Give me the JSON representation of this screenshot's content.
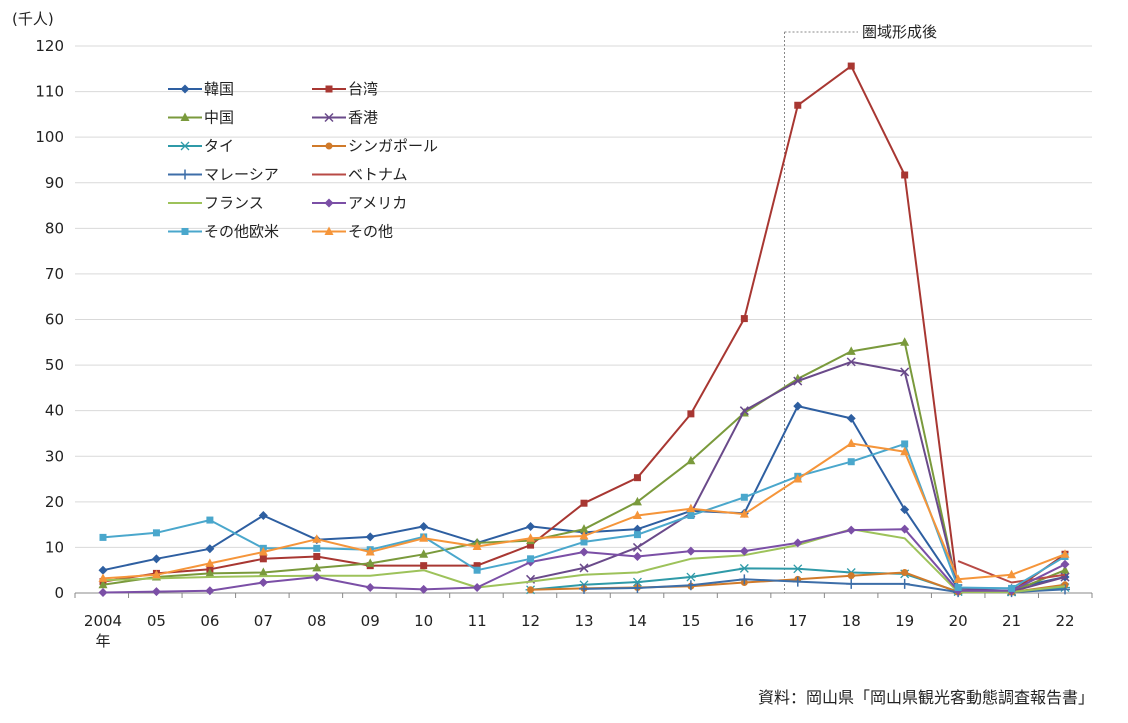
{
  "unit_label": "(千人)",
  "source": "資料：岡山県「岡山県観光客動態調査報告書」",
  "chart_data": {
    "type": "line",
    "x": [
      "2004",
      "05",
      "06",
      "07",
      "08",
      "09",
      "10",
      "11",
      "12",
      "13",
      "14",
      "15",
      "16",
      "17",
      "18",
      "19",
      "20",
      "21",
      "22"
    ],
    "x_first_sublabel": "年",
    "ylim": [
      0,
      120
    ],
    "yticks": [
      0,
      10,
      20,
      30,
      40,
      50,
      60,
      70,
      80,
      90,
      100,
      110,
      120
    ],
    "grid": "horizontal",
    "annotation": {
      "label": "圏域形成後",
      "at_x": "17"
    },
    "legend_placement": "top-left",
    "series": [
      {
        "name": "韓国",
        "color": "#2e5fa1",
        "marker": "diamond",
        "values": [
          5,
          7.5,
          9.7,
          17,
          11.7,
          12.3,
          14.6,
          11,
          14.6,
          13.3,
          14,
          18,
          17.5,
          41,
          38.3,
          18.3,
          1,
          1,
          3.5
        ]
      },
      {
        "name": "台湾",
        "color": "#a83732",
        "marker": "square",
        "values": [
          2.5,
          4.3,
          5.2,
          7.5,
          8,
          6,
          6,
          6,
          10.5,
          19.7,
          25.3,
          39.3,
          60.2,
          107,
          115.6,
          91.7,
          0.5,
          0.3,
          8.5
        ]
      },
      {
        "name": "中国",
        "color": "#7a9a3c",
        "marker": "triangle",
        "values": [
          1.8,
          3.5,
          4.3,
          4.5,
          5.5,
          6.5,
          8.5,
          11,
          11.5,
          14,
          20,
          29,
          39.5,
          47,
          53,
          55,
          0.5,
          0.3,
          5
        ]
      },
      {
        "name": "香港",
        "color": "#6a4a8a",
        "marker": "x",
        "values": [
          null,
          null,
          null,
          null,
          null,
          null,
          null,
          null,
          3,
          5.5,
          10,
          17.5,
          40,
          46.5,
          50.7,
          48.5,
          1,
          0.3,
          3.5
        ]
      },
      {
        "name": "タイ",
        "color": "#2f9aa8",
        "marker": "star",
        "values": [
          null,
          null,
          null,
          null,
          null,
          null,
          null,
          null,
          0.7,
          1.8,
          2.4,
          3.5,
          5.4,
          5.3,
          4.5,
          4.2,
          0.3,
          0.2,
          1.2
        ]
      },
      {
        "name": "シンガポール",
        "color": "#d07a2a",
        "marker": "circle",
        "values": [
          null,
          null,
          null,
          null,
          null,
          null,
          null,
          null,
          0.7,
          1,
          1.2,
          1.5,
          2.3,
          3,
          3.8,
          4.5,
          0.2,
          0.2,
          1.8
        ]
      },
      {
        "name": "マレーシア",
        "color": "#3d6ea8",
        "marker": "plus",
        "values": [
          null,
          null,
          null,
          null,
          null,
          null,
          null,
          null,
          null,
          0.9,
          1.1,
          1.7,
          3,
          2.5,
          2,
          2,
          0.2,
          0.2,
          0.8
        ]
      },
      {
        "name": "ベトナム",
        "color": "#b84a45",
        "marker": "none",
        "values": [
          null,
          null,
          null,
          null,
          null,
          null,
          null,
          null,
          null,
          null,
          null,
          null,
          null,
          null,
          null,
          null,
          7,
          2.3,
          4
        ]
      },
      {
        "name": "フランス",
        "color": "#9dc25a",
        "marker": "none",
        "values": [
          2.8,
          3.2,
          3.5,
          3.7,
          3.8,
          3.8,
          5,
          1.2,
          2.5,
          4,
          4.5,
          7.5,
          8.3,
          10.5,
          14,
          12,
          0.2,
          0.2,
          1.5
        ]
      },
      {
        "name": "アメリカ",
        "color": "#7b4fa6",
        "marker": "diamond",
        "values": [
          0.1,
          0.3,
          0.5,
          2.3,
          3.5,
          1.2,
          0.8,
          1.2,
          6.8,
          9,
          8,
          9.2,
          9.2,
          11,
          13.8,
          14,
          0.5,
          0.5,
          6.3
        ]
      },
      {
        "name": "その他欧米",
        "color": "#4aa7cc",
        "marker": "square",
        "values": [
          12.2,
          13.2,
          16,
          9.8,
          9.8,
          9.5,
          12.3,
          5,
          7.5,
          11.2,
          12.8,
          17,
          21,
          25.6,
          28.8,
          32.7,
          1.2,
          1,
          8
        ]
      },
      {
        "name": "その他",
        "color": "#f5953a",
        "marker": "triangle",
        "values": [
          3.2,
          4,
          6.5,
          9,
          11.8,
          9,
          12,
          10.2,
          12,
          12.5,
          17,
          18.5,
          17.3,
          25,
          32.8,
          31,
          3,
          4,
          8.5
        ]
      }
    ]
  }
}
